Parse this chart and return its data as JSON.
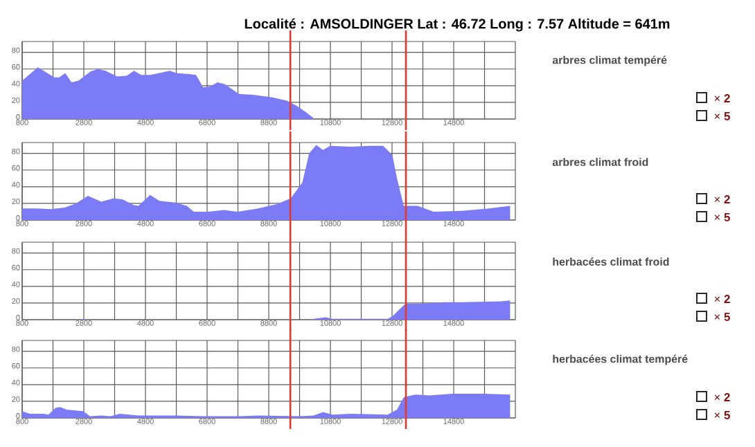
{
  "chart_data": [
    {
      "type": "area",
      "title": "Localité : AMSOLDINGER  Lat :  46.72  Long :  7.57   Altitude =  641m",
      "series": [
        {
          "name": "arbres climat tempéré",
          "color": "#7b7bf6",
          "x": [
            800,
            1310,
            1620,
            1840,
            2000,
            2200,
            2400,
            2630,
            3020,
            3260,
            3500,
            3880,
            4190,
            4430,
            4660,
            4970,
            5590,
            5820,
            6200,
            6440,
            6670,
            6900,
            7130,
            7370,
            7830,
            8300,
            8920,
            9390,
            9700,
            10010,
            10290,
            16800
          ],
          "values": [
            46,
            62,
            55,
            50,
            50,
            55,
            44,
            46,
            57,
            60,
            58,
            51,
            52,
            58,
            53,
            53,
            58,
            55,
            54,
            53,
            38,
            39,
            44,
            42,
            30,
            29,
            26,
            22,
            16,
            8,
            0,
            0
          ]
        }
      ],
      "xlim": [
        800,
        16800
      ],
      "ylim": [
        0,
        93
      ],
      "yticks": [
        0,
        20,
        40,
        60,
        80
      ],
      "grid": true,
      "xticks": [
        800,
        {
          "value": 1800,
          "label": null
        },
        2800,
        {
          "value": 3800,
          "label": null
        },
        4800,
        {
          "value": 5800,
          "label": null
        },
        6800,
        {
          "value": 7800,
          "label": null
        },
        8800,
        {
          "value": 9800,
          "label": null
        },
        10800,
        {
          "value": 11800,
          "label": null
        },
        12800,
        {
          "value": 13800,
          "label": null
        },
        14800,
        {
          "value": 15800,
          "label": null
        }
      ],
      "ref_lines": [
        {
          "axis": "x",
          "value": 9500,
          "color": "#e0392e"
        },
        {
          "axis": "x",
          "value": 13250,
          "color": "#e0392e"
        }
      ],
      "annotations": [
        "× **2**",
        "× **5**"
      ]
    },
    {
      "type": "area",
      "series": [
        {
          "name": "arbres climat froid",
          "color": "#7b7bf6",
          "x": [
            800,
            1280,
            1730,
            2180,
            2550,
            2930,
            3370,
            3750,
            4050,
            4420,
            4570,
            4950,
            5250,
            5770,
            6140,
            6370,
            6820,
            7340,
            7790,
            8460,
            9060,
            9510,
            9890,
            10110,
            10340,
            10560,
            10790,
            11460,
            12060,
            12510,
            12810,
            12960,
            13180,
            13630,
            14150,
            15050,
            15950,
            16630
          ],
          "values": [
            14,
            14,
            13,
            15,
            20,
            29,
            22,
            26,
            25,
            18,
            17,
            30,
            23,
            21,
            17,
            10,
            10,
            12,
            10,
            14,
            19,
            26,
            45,
            80,
            90,
            84,
            89,
            88,
            89,
            89,
            78,
            50,
            17,
            17,
            10,
            11,
            14,
            17
          ]
        }
      ],
      "xlim": [
        800,
        16800
      ],
      "ylim": [
        0,
        93
      ],
      "yticks": [
        0,
        20,
        40,
        60,
        80
      ],
      "grid": true,
      "xticks": [
        800,
        {
          "value": 1800,
          "label": null
        },
        2800,
        {
          "value": 3800,
          "label": null
        },
        4800,
        {
          "value": 5800,
          "label": null
        },
        6800,
        {
          "value": 7800,
          "label": null
        },
        8800,
        {
          "value": 9800,
          "label": null
        },
        10800,
        {
          "value": 11800,
          "label": null
        },
        12800,
        {
          "value": 13800,
          "label": null
        },
        14800,
        {
          "value": 15800,
          "label": null
        }
      ],
      "ref_lines": [
        {
          "axis": "x",
          "value": 9500,
          "color": "#e0392e"
        },
        {
          "axis": "x",
          "value": 13250,
          "color": "#e0392e"
        }
      ],
      "annotations": [
        "× **2**",
        "× **5**"
      ]
    },
    {
      "type": "area",
      "series": [
        {
          "name": "herbacées climat froid",
          "color": "#7b7bf6",
          "x": [
            800,
            2650,
            2780,
            2900,
            10100,
            10260,
            10640,
            10860,
            12660,
            12810,
            13030,
            13230,
            13560,
            14150,
            14450,
            15050,
            16320,
            16630
          ],
          "values": [
            0,
            0,
            1,
            0,
            0,
            1,
            3,
            1,
            1,
            4,
            12,
            19,
            19,
            20,
            21,
            21,
            22,
            23
          ]
        }
      ],
      "xlim": [
        800,
        16800
      ],
      "ylim": [
        0,
        93
      ],
      "yticks": [
        0,
        20,
        40,
        60,
        80
      ],
      "grid": true,
      "xticks": [
        800,
        {
          "value": 1800,
          "label": null
        },
        2800,
        {
          "value": 3800,
          "label": null
        },
        4800,
        {
          "value": 5800,
          "label": null
        },
        6800,
        {
          "value": 7800,
          "label": null
        },
        8800,
        {
          "value": 9800,
          "label": null
        },
        10800,
        {
          "value": 11800,
          "label": null
        },
        12800,
        {
          "value": 13800,
          "label": null
        },
        14800,
        {
          "value": 15800,
          "label": null
        }
      ],
      "ref_lines": [
        {
          "axis": "x",
          "value": 9500,
          "color": "#e0392e"
        },
        {
          "axis": "x",
          "value": 13250,
          "color": "#e0392e"
        }
      ],
      "annotations": [
        "× **2**",
        "× **5**"
      ]
    },
    {
      "type": "area",
      "series": [
        {
          "name": "herbacées climat tempéré",
          "color": "#7b7bf6",
          "x": [
            800,
            1050,
            1500,
            1650,
            1880,
            2030,
            2250,
            2780,
            3000,
            3370,
            3670,
            3970,
            4270,
            4570,
            5770,
            6670,
            7870,
            8460,
            9810,
            10260,
            10560,
            10860,
            11460,
            12660,
            12960,
            13180,
            13560,
            14000,
            14750,
            15800,
            16630
          ],
          "values": [
            8,
            5,
            5,
            4,
            12,
            13,
            10,
            8,
            2,
            3,
            2,
            5,
            4,
            3,
            3,
            2,
            2,
            3,
            2,
            3,
            7,
            4,
            5,
            4,
            10,
            25,
            28,
            27,
            29,
            29,
            28
          ]
        }
      ],
      "xlim": [
        800,
        16800
      ],
      "ylim": [
        0,
        93
      ],
      "yticks": [
        0,
        20,
        40,
        60,
        80
      ],
      "grid": true,
      "xticks": [
        800,
        {
          "value": 1800,
          "label": null
        },
        2800,
        {
          "value": 3800,
          "label": null
        },
        4800,
        {
          "value": 5800,
          "label": null
        },
        6800,
        {
          "value": 7800,
          "label": null
        },
        8800,
        {
          "value": 9800,
          "label": null
        },
        10800,
        {
          "value": 11800,
          "label": null
        },
        12800,
        {
          "value": 13800,
          "label": null
        },
        14800,
        {
          "value": 15800,
          "label": null
        }
      ],
      "ref_lines": [
        {
          "axis": "x",
          "value": 9500,
          "color": "#e0392e"
        },
        {
          "axis": "x",
          "value": 13250,
          "color": "#e0392e"
        }
      ],
      "annotations": [
        "× **2**",
        "× **5**"
      ]
    }
  ]
}
